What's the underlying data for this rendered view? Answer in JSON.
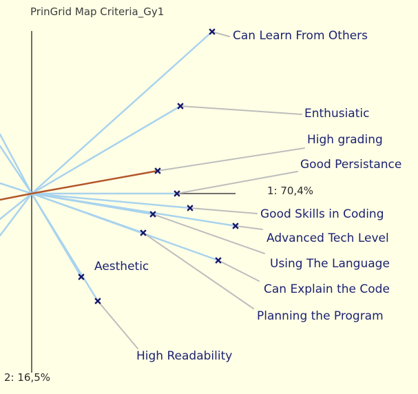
{
  "title": "PrinGrid Map Criteria_Gy1",
  "axes": {
    "axis1": "1: 70,4%",
    "axis2": "2: 16,5%"
  },
  "criteria": [
    "Can Learn From Others",
    "Enthusiatic",
    "High grading",
    "Good Persistance",
    "Good Skills in Coding",
    "Advanced Tech Level",
    "Using The Language",
    "Can Explain the Code",
    "Planning the Program",
    "Aesthetic",
    "High Readability"
  ],
  "colors": {
    "background": "#ffffe6",
    "vector": "#a9d3ee",
    "highlight_vector": "#b2562a",
    "leader": "#bdbdbd",
    "marker": "#15186a",
    "label_text": "#1b2270"
  }
}
